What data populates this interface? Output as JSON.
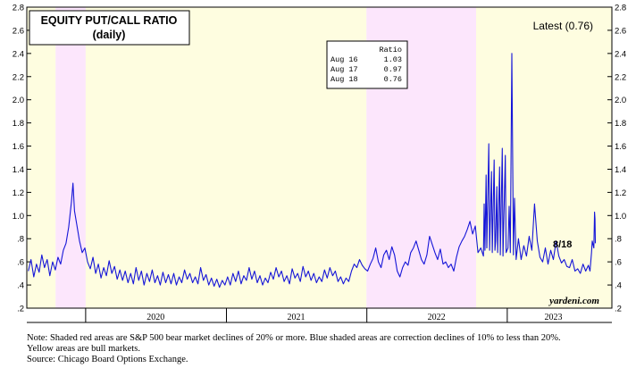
{
  "chart_data": {
    "type": "line",
    "title": "EQUITY PUT/CALL RATIO",
    "subtitle": "(daily)",
    "latest_label": "Latest (0.76)",
    "end_label": "8/18",
    "watermark": "yardeni.com",
    "ylim": [
      0.2,
      2.8
    ],
    "y_ticks": [
      0.2,
      0.4,
      0.6,
      0.8,
      1.0,
      1.2,
      1.4,
      1.6,
      1.8,
      2.0,
      2.2,
      2.4,
      2.6,
      2.8
    ],
    "y_tick_labels": [
      ".2",
      ".4",
      ".6",
      ".8",
      "1.0",
      "1.2",
      "1.4",
      "1.6",
      "1.8",
      "2.0",
      "2.2",
      "2.4",
      "2.6",
      "2.8"
    ],
    "x_range": [
      "2019-08-01",
      "2023-09-30"
    ],
    "x_year_labels": [
      {
        "label": "2020",
        "date": "2020-07-01"
      },
      {
        "label": "2021",
        "date": "2021-07-01"
      },
      {
        "label": "2022",
        "date": "2022-07-01"
      },
      {
        "label": "2023",
        "date": "2023-05-01"
      }
    ],
    "year_boundaries": [
      "2020-01-01",
      "2021-01-01",
      "2022-01-01",
      "2023-01-01"
    ],
    "shaded_regions": [
      {
        "start": "2019-08-01",
        "end": "2019-10-15",
        "kind": "bull",
        "color": "#fefde0"
      },
      {
        "start": "2019-10-15",
        "end": "2020-01-01",
        "kind": "bear",
        "color": "#fce6fc"
      },
      {
        "start": "2020-01-01",
        "end": "2021-12-31",
        "kind": "bull",
        "color": "#fefde0"
      },
      {
        "start": "2021-12-31",
        "end": "2022-10-12",
        "kind": "bear",
        "color": "#fce6fc"
      },
      {
        "start": "2022-10-12",
        "end": "2023-09-30",
        "kind": "bull",
        "color": "#fefde0"
      }
    ],
    "series": [
      {
        "name": "Equity Put/Call Ratio",
        "color": "#1515d8",
        "points": [
          [
            "2019-08-05",
            0.52
          ],
          [
            "2019-08-12",
            0.62
          ],
          [
            "2019-08-19",
            0.47
          ],
          [
            "2019-08-26",
            0.58
          ],
          [
            "2019-09-02",
            0.51
          ],
          [
            "2019-09-09",
            0.66
          ],
          [
            "2019-09-16",
            0.55
          ],
          [
            "2019-09-23",
            0.62
          ],
          [
            "2019-09-30",
            0.48
          ],
          [
            "2019-10-07",
            0.6
          ],
          [
            "2019-10-14",
            0.53
          ],
          [
            "2019-10-21",
            0.64
          ],
          [
            "2019-10-28",
            0.58
          ],
          [
            "2019-11-04",
            0.7
          ],
          [
            "2019-11-11",
            0.76
          ],
          [
            "2019-11-18",
            0.9
          ],
          [
            "2019-11-25",
            1.12
          ],
          [
            "2019-11-29",
            1.28
          ],
          [
            "2019-12-03",
            1.04
          ],
          [
            "2019-12-09",
            0.92
          ],
          [
            "2019-12-16",
            0.78
          ],
          [
            "2019-12-23",
            0.68
          ],
          [
            "2019-12-30",
            0.72
          ],
          [
            "2020-01-06",
            0.6
          ],
          [
            "2020-01-13",
            0.54
          ],
          [
            "2020-01-20",
            0.64
          ],
          [
            "2020-01-27",
            0.5
          ],
          [
            "2020-02-03",
            0.58
          ],
          [
            "2020-02-10",
            0.46
          ],
          [
            "2020-02-17",
            0.55
          ],
          [
            "2020-02-24",
            0.48
          ],
          [
            "2020-03-02",
            0.61
          ],
          [
            "2020-03-09",
            0.5
          ],
          [
            "2020-03-16",
            0.56
          ],
          [
            "2020-03-23",
            0.45
          ],
          [
            "2020-03-30",
            0.53
          ],
          [
            "2020-04-06",
            0.44
          ],
          [
            "2020-04-13",
            0.52
          ],
          [
            "2020-04-20",
            0.42
          ],
          [
            "2020-04-27",
            0.5
          ],
          [
            "2020-05-04",
            0.41
          ],
          [
            "2020-05-11",
            0.55
          ],
          [
            "2020-05-18",
            0.44
          ],
          [
            "2020-05-25",
            0.52
          ],
          [
            "2020-06-01",
            0.4
          ],
          [
            "2020-06-08",
            0.5
          ],
          [
            "2020-06-15",
            0.43
          ],
          [
            "2020-06-22",
            0.53
          ],
          [
            "2020-06-29",
            0.42
          ],
          [
            "2020-07-06",
            0.48
          ],
          [
            "2020-07-13",
            0.4
          ],
          [
            "2020-07-20",
            0.51
          ],
          [
            "2020-07-27",
            0.42
          ],
          [
            "2020-08-03",
            0.49
          ],
          [
            "2020-08-10",
            0.41
          ],
          [
            "2020-08-17",
            0.5
          ],
          [
            "2020-08-24",
            0.4
          ],
          [
            "2020-08-31",
            0.47
          ],
          [
            "2020-09-07",
            0.42
          ],
          [
            "2020-09-14",
            0.53
          ],
          [
            "2020-09-21",
            0.45
          ],
          [
            "2020-09-28",
            0.5
          ],
          [
            "2020-10-05",
            0.42
          ],
          [
            "2020-10-12",
            0.47
          ],
          [
            "2020-10-19",
            0.41
          ],
          [
            "2020-10-26",
            0.55
          ],
          [
            "2020-11-02",
            0.44
          ],
          [
            "2020-11-09",
            0.49
          ],
          [
            "2020-11-16",
            0.4
          ],
          [
            "2020-11-23",
            0.46
          ],
          [
            "2020-11-30",
            0.39
          ],
          [
            "2020-12-07",
            0.45
          ],
          [
            "2020-12-14",
            0.38
          ],
          [
            "2020-12-21",
            0.44
          ],
          [
            "2020-12-28",
            0.4
          ],
          [
            "2021-01-04",
            0.47
          ],
          [
            "2021-01-11",
            0.4
          ],
          [
            "2021-01-18",
            0.5
          ],
          [
            "2021-01-25",
            0.43
          ],
          [
            "2021-02-01",
            0.52
          ],
          [
            "2021-02-08",
            0.41
          ],
          [
            "2021-02-15",
            0.48
          ],
          [
            "2021-02-22",
            0.44
          ],
          [
            "2021-03-01",
            0.55
          ],
          [
            "2021-03-08",
            0.45
          ],
          [
            "2021-03-15",
            0.52
          ],
          [
            "2021-03-22",
            0.42
          ],
          [
            "2021-03-29",
            0.48
          ],
          [
            "2021-04-05",
            0.4
          ],
          [
            "2021-04-12",
            0.46
          ],
          [
            "2021-04-19",
            0.42
          ],
          [
            "2021-04-26",
            0.51
          ],
          [
            "2021-05-03",
            0.45
          ],
          [
            "2021-05-10",
            0.55
          ],
          [
            "2021-05-17",
            0.47
          ],
          [
            "2021-05-24",
            0.52
          ],
          [
            "2021-05-31",
            0.43
          ],
          [
            "2021-06-07",
            0.48
          ],
          [
            "2021-06-14",
            0.41
          ],
          [
            "2021-06-21",
            0.54
          ],
          [
            "2021-06-28",
            0.46
          ],
          [
            "2021-07-05",
            0.5
          ],
          [
            "2021-07-12",
            0.43
          ],
          [
            "2021-07-19",
            0.56
          ],
          [
            "2021-07-26",
            0.47
          ],
          [
            "2021-08-02",
            0.52
          ],
          [
            "2021-08-09",
            0.44
          ],
          [
            "2021-08-16",
            0.5
          ],
          [
            "2021-08-23",
            0.42
          ],
          [
            "2021-08-30",
            0.47
          ],
          [
            "2021-09-06",
            0.43
          ],
          [
            "2021-09-13",
            0.53
          ],
          [
            "2021-09-20",
            0.46
          ],
          [
            "2021-09-27",
            0.55
          ],
          [
            "2021-10-04",
            0.48
          ],
          [
            "2021-10-11",
            0.52
          ],
          [
            "2021-10-18",
            0.43
          ],
          [
            "2021-10-25",
            0.47
          ],
          [
            "2021-11-01",
            0.41
          ],
          [
            "2021-11-08",
            0.46
          ],
          [
            "2021-11-15",
            0.43
          ],
          [
            "2021-11-22",
            0.52
          ],
          [
            "2021-11-29",
            0.58
          ],
          [
            "2021-12-06",
            0.55
          ],
          [
            "2021-12-13",
            0.62
          ],
          [
            "2021-12-20",
            0.57
          ],
          [
            "2021-12-27",
            0.54
          ],
          [
            "2022-01-03",
            0.52
          ],
          [
            "2022-01-10",
            0.58
          ],
          [
            "2022-01-17",
            0.63
          ],
          [
            "2022-01-24",
            0.72
          ],
          [
            "2022-01-31",
            0.6
          ],
          [
            "2022-02-07",
            0.55
          ],
          [
            "2022-02-14",
            0.66
          ],
          [
            "2022-02-21",
            0.7
          ],
          [
            "2022-02-28",
            0.62
          ],
          [
            "2022-03-07",
            0.73
          ],
          [
            "2022-03-14",
            0.66
          ],
          [
            "2022-03-21",
            0.52
          ],
          [
            "2022-03-28",
            0.47
          ],
          [
            "2022-04-04",
            0.55
          ],
          [
            "2022-04-11",
            0.6
          ],
          [
            "2022-04-18",
            0.57
          ],
          [
            "2022-04-25",
            0.68
          ],
          [
            "2022-05-02",
            0.72
          ],
          [
            "2022-05-09",
            0.78
          ],
          [
            "2022-05-16",
            0.7
          ],
          [
            "2022-05-23",
            0.62
          ],
          [
            "2022-05-30",
            0.58
          ],
          [
            "2022-06-06",
            0.66
          ],
          [
            "2022-06-13",
            0.82
          ],
          [
            "2022-06-20",
            0.75
          ],
          [
            "2022-06-27",
            0.68
          ],
          [
            "2022-07-04",
            0.62
          ],
          [
            "2022-07-11",
            0.71
          ],
          [
            "2022-07-18",
            0.58
          ],
          [
            "2022-07-25",
            0.6
          ],
          [
            "2022-08-01",
            0.55
          ],
          [
            "2022-08-08",
            0.58
          ],
          [
            "2022-08-15",
            0.52
          ],
          [
            "2022-08-22",
            0.64
          ],
          [
            "2022-08-29",
            0.73
          ],
          [
            "2022-09-05",
            0.78
          ],
          [
            "2022-09-12",
            0.82
          ],
          [
            "2022-09-19",
            0.88
          ],
          [
            "2022-09-26",
            0.95
          ],
          [
            "2022-10-03",
            0.84
          ],
          [
            "2022-10-10",
            0.91
          ],
          [
            "2022-10-17",
            0.68
          ],
          [
            "2022-10-24",
            0.72
          ],
          [
            "2022-10-31",
            0.65
          ],
          [
            "2022-11-02",
            1.1
          ],
          [
            "2022-11-04",
            0.7
          ],
          [
            "2022-11-07",
            1.35
          ],
          [
            "2022-11-09",
            0.72
          ],
          [
            "2022-11-14",
            1.62
          ],
          [
            "2022-11-16",
            0.7
          ],
          [
            "2022-11-21",
            1.38
          ],
          [
            "2022-11-23",
            0.68
          ],
          [
            "2022-11-28",
            1.48
          ],
          [
            "2022-11-30",
            0.7
          ],
          [
            "2022-12-02",
            0.78
          ],
          [
            "2022-12-05",
            1.25
          ],
          [
            "2022-12-07",
            0.68
          ],
          [
            "2022-12-12",
            1.42
          ],
          [
            "2022-12-14",
            0.66
          ],
          [
            "2022-12-19",
            1.58
          ],
          [
            "2022-12-21",
            0.65
          ],
          [
            "2022-12-27",
            1.52
          ],
          [
            "2022-12-29",
            0.68
          ],
          [
            "2023-01-03",
            0.72
          ],
          [
            "2023-01-06",
            1.08
          ],
          [
            "2023-01-09",
            0.68
          ],
          [
            "2023-01-13",
            2.4
          ],
          [
            "2023-01-17",
            0.66
          ],
          [
            "2023-01-20",
            1.15
          ],
          [
            "2023-01-24",
            0.62
          ],
          [
            "2023-01-30",
            0.8
          ],
          [
            "2023-02-06",
            0.62
          ],
          [
            "2023-02-13",
            0.74
          ],
          [
            "2023-02-20",
            0.65
          ],
          [
            "2023-02-27",
            0.82
          ],
          [
            "2023-03-06",
            0.7
          ],
          [
            "2023-03-13",
            1.1
          ],
          [
            "2023-03-20",
            0.78
          ],
          [
            "2023-03-27",
            0.64
          ],
          [
            "2023-04-03",
            0.6
          ],
          [
            "2023-04-10",
            0.72
          ],
          [
            "2023-04-17",
            0.58
          ],
          [
            "2023-04-24",
            0.7
          ],
          [
            "2023-05-01",
            0.62
          ],
          [
            "2023-05-08",
            0.78
          ],
          [
            "2023-05-15",
            0.65
          ],
          [
            "2023-05-22",
            0.59
          ],
          [
            "2023-05-29",
            0.62
          ],
          [
            "2023-06-05",
            0.56
          ],
          [
            "2023-06-12",
            0.55
          ],
          [
            "2023-06-19",
            0.62
          ],
          [
            "2023-06-26",
            0.52
          ],
          [
            "2023-07-03",
            0.54
          ],
          [
            "2023-07-10",
            0.5
          ],
          [
            "2023-07-17",
            0.58
          ],
          [
            "2023-07-24",
            0.52
          ],
          [
            "2023-07-31",
            0.57
          ],
          [
            "2023-08-04",
            0.52
          ],
          [
            "2023-08-08",
            0.68
          ],
          [
            "2023-08-10",
            0.78
          ],
          [
            "2023-08-14",
            0.72
          ],
          [
            "2023-08-16",
            1.03
          ],
          [
            "2023-08-17",
            0.97
          ],
          [
            "2023-08-18",
            0.76
          ]
        ]
      }
    ],
    "table": {
      "header": "Ratio",
      "rows": [
        {
          "date": "Aug 16",
          "value": "1.03"
        },
        {
          "date": "Aug 17",
          "value": "0.97"
        },
        {
          "date": "Aug 18",
          "value": "0.76"
        }
      ]
    },
    "notes": [
      "Note: Shaded red areas are S&P 500 bear market declines of 20% or more.  Blue shaded areas are correction declines of 10% to less than 20%.",
      "Yellow areas are bull markets.",
      "Source: Chicago Board Options Exchange."
    ]
  }
}
